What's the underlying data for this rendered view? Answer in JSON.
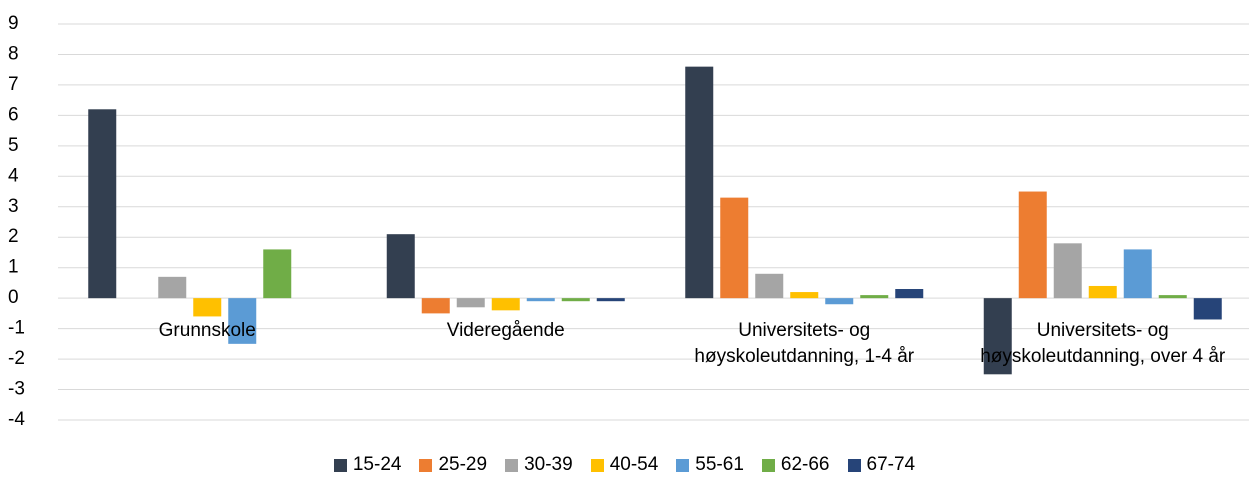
{
  "chart_data": {
    "type": "bar",
    "categories": [
      "Grunnskole",
      "Videregående",
      "Universitets- og høyskoleutdanning, 1-4 år",
      "Universitets- og høyskoleutdanning, over 4 år"
    ],
    "series": [
      {
        "name": "15-24",
        "color": "#333f50",
        "values": [
          6.2,
          2.1,
          7.6,
          -2.5
        ]
      },
      {
        "name": "25-29",
        "color": "#ed7d31",
        "values": [
          0,
          -0.5,
          3.3,
          3.5
        ]
      },
      {
        "name": "30-39",
        "color": "#a5a5a5",
        "values": [
          0.7,
          -0.3,
          0.8,
          1.8
        ]
      },
      {
        "name": "40-54",
        "color": "#ffc000",
        "values": [
          -0.6,
          -0.4,
          0.2,
          0.4
        ]
      },
      {
        "name": "55-61",
        "color": "#5b9bd5",
        "values": [
          -1.5,
          -0.1,
          -0.2,
          1.6
        ]
      },
      {
        "name": "62-66",
        "color": "#70ad47",
        "values": [
          1.6,
          -0.1,
          0.1,
          0.1
        ]
      },
      {
        "name": "67-74",
        "color": "#264478",
        "values": [
          0,
          -0.1,
          0.3,
          -0.7
        ]
      }
    ],
    "ylim": [
      -4,
      9
    ],
    "yticks": [
      -4,
      -3,
      -2,
      -1,
      0,
      1,
      2,
      3,
      4,
      5,
      6,
      7,
      8,
      9
    ],
    "grid": true,
    "legend": "bottom"
  }
}
